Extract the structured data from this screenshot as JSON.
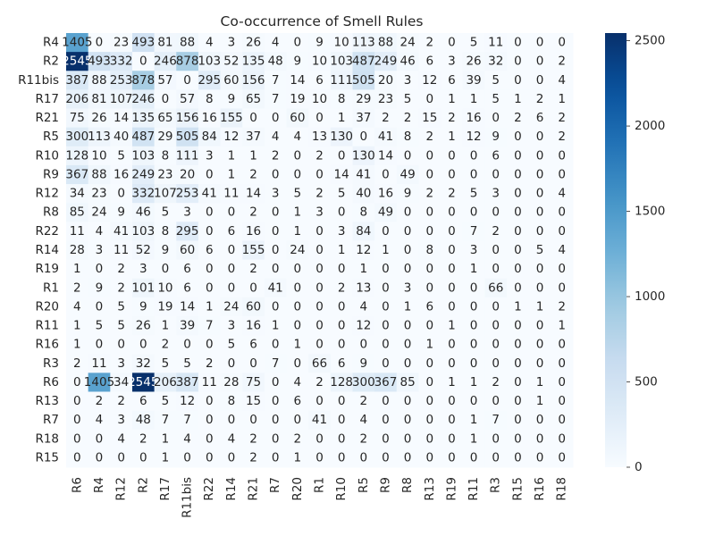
{
  "chart_data": {
    "type": "heatmap",
    "title": "Co-occurrence of Smell Rules",
    "xlabel": "",
    "ylabel": "",
    "colormap": "Blues",
    "color_low": "#f7fbff",
    "color_high": "#08306b",
    "vmin": 0,
    "vmax": 2545,
    "colorbar_ticks": [
      "0",
      "500",
      "1000",
      "1500",
      "2000",
      "2500"
    ],
    "colorbar_tick_values": [
      0,
      500,
      1000,
      1500,
      2000,
      2500
    ],
    "x_labels": [
      "R6",
      "R4",
      "R12",
      "R2",
      "R17",
      "R11bis",
      "R22",
      "R14",
      "R21",
      "R7",
      "R20",
      "R1",
      "R10",
      "R5",
      "R9",
      "R8",
      "R13",
      "R19",
      "R11",
      "R3",
      "R15",
      "R16",
      "R18"
    ],
    "y_labels": [
      "R4",
      "R2",
      "R11bis",
      "R17",
      "R21",
      "R5",
      "R10",
      "R9",
      "R12",
      "R8",
      "R22",
      "R14",
      "R19",
      "R1",
      "R20",
      "R11",
      "R16",
      "R3",
      "R6",
      "R13",
      "R7",
      "R18",
      "R15"
    ],
    "labels": [
      [
        "1405",
        "0",
        "23",
        "493",
        "81",
        "88",
        "4",
        "3",
        "26",
        "4",
        "0",
        "9",
        "10",
        "113",
        "88",
        "24",
        "2",
        "0",
        "5",
        "11",
        "0",
        "0",
        "0"
      ],
      [
        "2545",
        "493",
        "332",
        "0",
        "246",
        "878",
        "103",
        "52",
        "135",
        "48",
        "9",
        "10",
        "103",
        "487",
        "249",
        "46",
        "6",
        "3",
        "26",
        "32",
        "0",
        "0",
        "2"
      ],
      [
        "387",
        "88",
        "253",
        "878",
        "57",
        "0",
        "295",
        "60",
        "156",
        "7",
        "14",
        "6",
        "111",
        "505",
        "20",
        "3",
        "12",
        "6",
        "39",
        "5",
        "0",
        "0",
        "4"
      ],
      [
        "206",
        "81",
        "107",
        "246",
        "0",
        "57",
        "8",
        "9",
        "65",
        "7",
        "19",
        "10",
        "8",
        "29",
        "23",
        "5",
        "0",
        "1",
        "1",
        "5",
        "1",
        "2",
        "1"
      ],
      [
        "75",
        "26",
        "14",
        "135",
        "65",
        "156",
        "16",
        "155",
        "0",
        "0",
        "60",
        "0",
        "1",
        "37",
        "2",
        "2",
        "15",
        "2",
        "16",
        "0",
        "2",
        "6",
        "2"
      ],
      [
        "300",
        "113",
        "40",
        "487",
        "29",
        "505",
        "84",
        "12",
        "37",
        "4",
        "4",
        "13",
        "130",
        "0",
        "41",
        "8",
        "2",
        "1",
        "12",
        "9",
        "0",
        "0",
        "2"
      ],
      [
        "128",
        "10",
        "5",
        "103",
        "8",
        "111",
        "3",
        "1",
        "1",
        "2",
        "0",
        "2",
        "0",
        "130",
        "14",
        "0",
        "0",
        "0",
        "0",
        "6",
        "0",
        "0",
        "0"
      ],
      [
        "367",
        "88",
        "16",
        "249",
        "23",
        "20",
        "0",
        "1",
        "2",
        "0",
        "0",
        "0",
        "14",
        "41",
        "0",
        "49",
        "0",
        "0",
        "0",
        "0",
        "0",
        "0",
        "0"
      ],
      [
        "34",
        "23",
        "0",
        "332",
        "107",
        "253",
        "41",
        "11",
        "14",
        "3",
        "5",
        "2",
        "5",
        "40",
        "16",
        "9",
        "2",
        "2",
        "5",
        "3",
        "0",
        "0",
        "4"
      ],
      [
        "85",
        "24",
        "9",
        "46",
        "5",
        "3",
        "0",
        "0",
        "2",
        "0",
        "1",
        "3",
        "0",
        "8",
        "49",
        "0",
        "0",
        "0",
        "0",
        "0",
        "0",
        "0",
        "0"
      ],
      [
        "11",
        "4",
        "41",
        "103",
        "8",
        "295",
        "0",
        "6",
        "16",
        "0",
        "1",
        "0",
        "3",
        "84",
        "0",
        "0",
        "0",
        "0",
        "7",
        "2",
        "0",
        "0",
        "0"
      ],
      [
        "28",
        "3",
        "11",
        "52",
        "9",
        "60",
        "6",
        "0",
        "155",
        "0",
        "24",
        "0",
        "1",
        "12",
        "1",
        "0",
        "8",
        "0",
        "3",
        "0",
        "0",
        "5",
        "4"
      ],
      [
        "1",
        "0",
        "2",
        "3",
        "0",
        "6",
        "0",
        "0",
        "2",
        "0",
        "0",
        "0",
        "0",
        "1",
        "0",
        "0",
        "0",
        "0",
        "1",
        "0",
        "0",
        "0",
        "0"
      ],
      [
        "2",
        "9",
        "2",
        "101",
        "10",
        "6",
        "0",
        "0",
        "0",
        "41",
        "0",
        "0",
        "2",
        "13",
        "0",
        "3",
        "0",
        "0",
        "0",
        "66",
        "0",
        "0",
        "0"
      ],
      [
        "4",
        "0",
        "5",
        "9",
        "19",
        "14",
        "1",
        "24",
        "60",
        "0",
        "0",
        "0",
        "0",
        "4",
        "0",
        "1",
        "6",
        "0",
        "0",
        "0",
        "1",
        "1",
        "2"
      ],
      [
        "1",
        "5",
        "5",
        "26",
        "1",
        "39",
        "7",
        "3",
        "16",
        "1",
        "0",
        "0",
        "0",
        "12",
        "0",
        "0",
        "0",
        "1",
        "0",
        "0",
        "0",
        "0",
        "1"
      ],
      [
        "1",
        "0",
        "0",
        "0",
        "2",
        "0",
        "0",
        "5",
        "6",
        "0",
        "1",
        "0",
        "0",
        "0",
        "0",
        "0",
        "1",
        "0",
        "0",
        "0",
        "0",
        "0",
        "0"
      ],
      [
        "2",
        "11",
        "3",
        "32",
        "5",
        "5",
        "2",
        "0",
        "0",
        "7",
        "0",
        "66",
        "6",
        "9",
        "0",
        "0",
        "0",
        "0",
        "0",
        "0",
        "0",
        "0",
        "0"
      ],
      [
        "0",
        "1405",
        "34",
        "2545",
        "206",
        "387",
        "11",
        "28",
        "75",
        "0",
        "4",
        "2",
        "128",
        "300",
        "367",
        "85",
        "0",
        "1",
        "1",
        "2",
        "0",
        "1",
        "0"
      ],
      [
        "0",
        "2",
        "2",
        "6",
        "5",
        "12",
        "0",
        "8",
        "15",
        "0",
        "6",
        "0",
        "0",
        "2",
        "0",
        "0",
        "0",
        "0",
        "0",
        "0",
        "0",
        "1",
        "0"
      ],
      [
        "0",
        "4",
        "3",
        "48",
        "7",
        "7",
        "0",
        "0",
        "0",
        "0",
        "0",
        "41",
        "0",
        "4",
        "0",
        "0",
        "0",
        "0",
        "1",
        "7",
        "0",
        "0",
        "0"
      ],
      [
        "0",
        "0",
        "4",
        "2",
        "1",
        "4",
        "0",
        "4",
        "2",
        "0",
        "2",
        "0",
        "0",
        "2",
        "0",
        "0",
        "0",
        "0",
        "1",
        "0",
        "0",
        "0",
        "0"
      ],
      [
        "0",
        "0",
        "0",
        "0",
        "1",
        "0",
        "0",
        "0",
        "2",
        "0",
        "1",
        "0",
        "0",
        "0",
        "0",
        "0",
        "0",
        "0",
        "0",
        "0",
        "0",
        "0",
        "0"
      ]
    ]
  }
}
